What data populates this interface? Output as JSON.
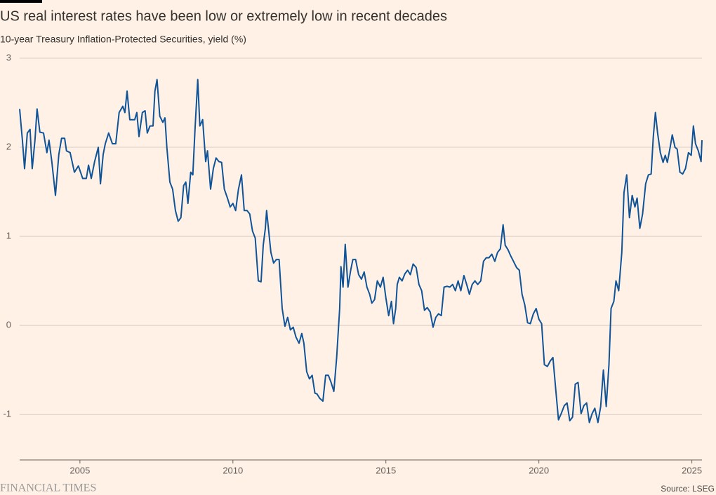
{
  "chart_data": {
    "type": "line",
    "title": "US real interest rates have been low or extremely low in recent decades",
    "subtitle": "10-year Treasury Inflation-Protected Securities, yield (%)",
    "source": "Source: LSEG",
    "brand": "FINANCIAL TIMES",
    "color": "#0f5499",
    "grid": true,
    "xlim": [
      2003.03,
      2025.33
    ],
    "xticks": [
      2005,
      2010,
      2015,
      2020,
      2025
    ],
    "ylim": [
      -1.51,
      3
    ],
    "yticks": [
      -1,
      0,
      1,
      2,
      3
    ],
    "x": [
      2003.03,
      2003.12,
      2003.19,
      2003.28,
      2003.37,
      2003.44,
      2003.53,
      2003.6,
      2003.69,
      2003.81,
      2003.92,
      2003.99,
      2004.08,
      2004.2,
      2004.31,
      2004.4,
      2004.5,
      2004.56,
      2004.68,
      2004.82,
      2004.95,
      2005.09,
      2005.21,
      2005.28,
      2005.37,
      2005.48,
      2005.6,
      2005.67,
      2005.76,
      2005.83,
      2005.94,
      2006.06,
      2006.17,
      2006.28,
      2006.4,
      2006.47,
      2006.54,
      2006.63,
      2006.7,
      2006.79,
      2006.86,
      2006.93,
      2007.04,
      2007.13,
      2007.2,
      2007.29,
      2007.39,
      2007.45,
      2007.52,
      2007.61,
      2007.71,
      2007.78,
      2007.84,
      2007.94,
      2008.03,
      2008.12,
      2008.21,
      2008.3,
      2008.39,
      2008.46,
      2008.53,
      2008.62,
      2008.69,
      2008.76,
      2008.85,
      2008.92,
      2009.01,
      2009.11,
      2009.17,
      2009.27,
      2009.36,
      2009.45,
      2009.54,
      2009.63,
      2009.72,
      2009.82,
      2009.91,
      2010.0,
      2010.09,
      2010.18,
      2010.28,
      2010.37,
      2010.46,
      2010.55,
      2010.64,
      2010.73,
      2010.83,
      2010.92,
      2010.99,
      2011.06,
      2011.1,
      2011.17,
      2011.24,
      2011.33,
      2011.42,
      2011.51,
      2011.61,
      2011.7,
      2011.79,
      2011.88,
      2011.97,
      2012.06,
      2012.16,
      2012.25,
      2012.32,
      2012.41,
      2012.5,
      2012.59,
      2012.68,
      2012.75,
      2012.84,
      2012.94,
      2013.03,
      2013.12,
      2013.21,
      2013.3,
      2013.39,
      2013.49,
      2013.53,
      2013.6,
      2013.67,
      2013.76,
      2013.85,
      2013.92,
      2014.01,
      2014.11,
      2014.2,
      2014.29,
      2014.38,
      2014.47,
      2014.54,
      2014.63,
      2014.72,
      2014.82,
      2014.91,
      2015.0,
      2015.09,
      2015.18,
      2015.25,
      2015.32,
      2015.37,
      2015.44,
      2015.53,
      2015.62,
      2015.71,
      2015.8,
      2015.89,
      2015.99,
      2016.08,
      2016.17,
      2016.26,
      2016.35,
      2016.45,
      2016.54,
      2016.63,
      2016.72,
      2016.81,
      2016.9,
      2017.0,
      2017.09,
      2017.18,
      2017.27,
      2017.36,
      2017.45,
      2017.55,
      2017.64,
      2017.73,
      2017.82,
      2017.91,
      2018.0,
      2018.1,
      2018.19,
      2018.28,
      2018.37,
      2018.46,
      2018.56,
      2018.65,
      2018.74,
      2018.83,
      2018.9,
      2018.99,
      2019.08,
      2019.17,
      2019.27,
      2019.36,
      2019.45,
      2019.54,
      2019.63,
      2019.72,
      2019.82,
      2019.91,
      2020.0,
      2020.09,
      2020.18,
      2020.28,
      2020.37,
      2020.46,
      2020.55,
      2020.64,
      2020.73,
      2020.83,
      2020.92,
      2021.01,
      2021.1,
      2021.19,
      2021.28,
      2021.38,
      2021.47,
      2021.56,
      2021.65,
      2021.74,
      2021.83,
      2021.93,
      2022.02,
      2022.11,
      2022.2,
      2022.29,
      2022.36,
      2022.45,
      2022.52,
      2022.61,
      2022.71,
      2022.78,
      2022.87,
      2022.96,
      2023.05,
      2023.14,
      2023.21,
      2023.3,
      2023.39,
      2023.49,
      2023.58,
      2023.67,
      2023.74,
      2023.81,
      2023.88,
      2023.97,
      2024.06,
      2024.13,
      2024.2,
      2024.29,
      2024.36,
      2024.45,
      2024.52,
      2024.61,
      2024.7,
      2024.79,
      2024.89,
      2024.98,
      2025.05,
      2025.12,
      2025.21,
      2025.3,
      2025.33
    ],
    "values": [
      2.43,
      2.08,
      1.76,
      2.16,
      2.2,
      1.76,
      2.08,
      2.43,
      2.17,
      2.16,
      1.94,
      2.08,
      1.84,
      1.46,
      1.92,
      2.1,
      2.1,
      1.96,
      1.94,
      1.72,
      1.79,
      1.65,
      1.65,
      1.8,
      1.65,
      1.84,
      2.0,
      1.59,
      1.92,
      2.04,
      2.16,
      2.04,
      2.04,
      2.39,
      2.46,
      2.39,
      2.63,
      2.31,
      2.31,
      2.31,
      2.39,
      2.12,
      2.39,
      2.41,
      2.16,
      2.24,
      2.24,
      2.63,
      2.76,
      2.35,
      2.28,
      2.33,
      2.0,
      1.61,
      1.53,
      1.29,
      1.17,
      1.21,
      1.57,
      1.61,
      1.37,
      1.72,
      1.69,
      2.2,
      2.76,
      2.24,
      2.31,
      1.84,
      1.96,
      1.53,
      1.76,
      1.88,
      1.84,
      1.83,
      1.53,
      1.43,
      1.33,
      1.37,
      1.29,
      1.53,
      1.69,
      1.29,
      1.29,
      1.25,
      1.06,
      0.98,
      0.5,
      0.49,
      0.9,
      1.09,
      1.29,
      1.06,
      0.82,
      0.7,
      0.74,
      0.74,
      0.19,
      -0.01,
      0.09,
      -0.05,
      -0.02,
      -0.13,
      -0.2,
      -0.09,
      -0.2,
      -0.52,
      -0.6,
      -0.56,
      -0.76,
      -0.77,
      -0.82,
      -0.85,
      -0.56,
      -0.56,
      -0.64,
      -0.74,
      -0.36,
      0.19,
      0.66,
      0.43,
      0.91,
      0.43,
      0.62,
      0.74,
      0.74,
      0.57,
      0.52,
      0.6,
      0.43,
      0.35,
      0.25,
      0.29,
      0.5,
      0.43,
      0.54,
      0.31,
      0.11,
      0.27,
      0.02,
      0.19,
      0.46,
      0.54,
      0.5,
      0.58,
      0.62,
      0.57,
      0.69,
      0.65,
      0.46,
      0.39,
      0.17,
      0.2,
      0.15,
      -0.02,
      0.09,
      0.13,
      0.11,
      0.43,
      0.44,
      0.43,
      0.46,
      0.39,
      0.5,
      0.39,
      0.56,
      0.46,
      0.35,
      0.46,
      0.5,
      0.46,
      0.5,
      0.72,
      0.76,
      0.76,
      0.8,
      0.72,
      0.82,
      0.86,
      1.13,
      0.9,
      0.85,
      0.78,
      0.72,
      0.65,
      0.62,
      0.35,
      0.23,
      0.03,
      0.02,
      0.13,
      0.19,
      0.07,
      0.02,
      -0.44,
      -0.46,
      -0.4,
      -0.36,
      -0.72,
      -1.06,
      -0.99,
      -0.9,
      -0.87,
      -1.07,
      -1.03,
      -0.66,
      -0.64,
      -0.99,
      -0.9,
      -0.87,
      -1.09,
      -0.99,
      -0.93,
      -1.09,
      -0.91,
      -0.5,
      -0.91,
      -0.44,
      0.19,
      0.27,
      0.5,
      0.39,
      0.82,
      1.49,
      1.69,
      1.21,
      1.46,
      1.33,
      1.43,
      1.09,
      1.25,
      1.59,
      1.69,
      1.7,
      2.12,
      2.39,
      2.16,
      1.94,
      1.83,
      1.91,
      1.83,
      2.0,
      2.14,
      2.0,
      1.98,
      1.72,
      1.7,
      1.76,
      1.94,
      1.91,
      2.24,
      2.04,
      1.96,
      1.84,
      2.08
    ]
  }
}
